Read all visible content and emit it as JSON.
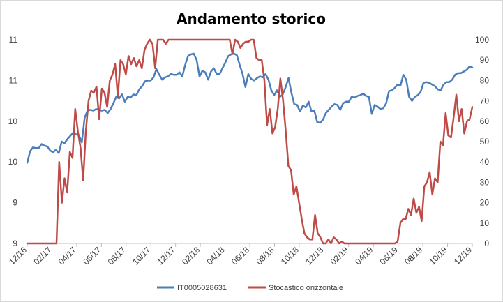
{
  "chart_data": {
    "type": "line",
    "title": "Andamento storico",
    "x_tick_labels": [
      "12/16",
      "02/17",
      "04/17",
      "06/17",
      "08/17",
      "10/17",
      "12/17",
      "02/18",
      "04/18",
      "06/18",
      "08/18",
      "10/18",
      "12/18",
      "02/19",
      "04/19",
      "06/19",
      "08/19",
      "10/19",
      "12/19"
    ],
    "y_left_tick_labels": [
      "9",
      "9",
      "10",
      "10",
      "11",
      "11"
    ],
    "y_right_tick_labels": [
      "0",
      "10",
      "20",
      "30",
      "40",
      "50",
      "60",
      "70",
      "80",
      "90",
      "100"
    ],
    "y_left_range": [
      9.0,
      11.5
    ],
    "y_right_range": [
      0,
      100
    ],
    "legend_position": "bottom",
    "grid": false,
    "series": [
      {
        "name": "IT0005028631",
        "axis": "left",
        "color": "#4a7ebb",
        "values": [
          9.99,
          10.13,
          10.18,
          10.17,
          10.17,
          10.22,
          10.2,
          10.19,
          10.14,
          10.12,
          10.15,
          10.11,
          10.25,
          10.23,
          10.28,
          10.32,
          10.36,
          10.34,
          10.33,
          10.24,
          10.54,
          10.63,
          10.64,
          10.63,
          10.65,
          10.64,
          10.63,
          10.64,
          10.6,
          10.65,
          10.72,
          10.8,
          10.78,
          10.83,
          10.74,
          10.8,
          10.79,
          10.83,
          10.82,
          10.89,
          10.93,
          10.99,
          11.0,
          11.0,
          11.04,
          11.14,
          11.07,
          11.01,
          11.04,
          11.05,
          11.08,
          11.07,
          11.07,
          11.1,
          11.05,
          11.19,
          11.3,
          11.32,
          11.33,
          11.25,
          11.05,
          11.12,
          11.1,
          11.01,
          11.11,
          11.15,
          11.08,
          11.08,
          11.15,
          11.22,
          11.3,
          11.32,
          11.33,
          11.31,
          11.19,
          11.08,
          10.92,
          11.08,
          11.02,
          11.0,
          11.03,
          11.05,
          11.04,
          11.08,
          11.01,
          10.88,
          10.82,
          10.88,
          10.8,
          10.83,
          10.92,
          11.03,
          10.85,
          10.71,
          10.7,
          10.62,
          10.69,
          10.67,
          10.74,
          10.62,
          10.63,
          10.49,
          10.48,
          10.52,
          10.6,
          10.64,
          10.68,
          10.71,
          10.7,
          10.64,
          10.72,
          10.74,
          10.74,
          10.8,
          10.79,
          10.81,
          10.82,
          10.84,
          10.81,
          10.8,
          10.59,
          10.7,
          10.68,
          10.65,
          10.66,
          10.72,
          10.87,
          10.88,
          10.91,
          10.95,
          10.94,
          11.07,
          11.01,
          10.8,
          10.75,
          10.8,
          10.82,
          10.86,
          10.97,
          10.98,
          10.97,
          10.95,
          10.93,
          10.89,
          10.88,
          10.95,
          10.98,
          10.98,
          11.01,
          11.07,
          11.09,
          11.09,
          11.11,
          11.13,
          11.17,
          11.16
        ]
      },
      {
        "name": "Stocastico orizzontale",
        "axis": "right",
        "color": "#be4b48",
        "values": [
          0,
          0,
          0,
          0,
          0,
          0,
          0,
          0,
          0,
          0,
          0,
          0,
          40,
          20,
          32,
          25,
          45,
          42,
          66,
          55,
          47,
          31,
          55,
          70,
          75,
          74,
          77,
          61,
          76,
          74,
          67,
          80,
          83,
          88,
          72,
          90,
          88,
          83,
          92,
          88,
          91,
          87,
          90,
          86,
          95,
          98,
          100,
          98,
          86,
          100,
          100,
          100,
          98,
          100,
          100,
          100,
          100,
          100,
          100,
          100,
          100,
          100,
          100,
          100,
          100,
          100,
          100,
          100,
          100,
          100,
          100,
          100,
          100,
          100,
          100,
          100,
          100,
          93,
          100,
          99,
          96,
          98,
          99,
          99,
          100,
          100,
          91,
          90,
          90,
          80,
          58,
          66,
          54,
          57,
          66,
          81,
          70,
          55,
          38,
          36,
          24,
          28,
          20,
          12,
          5,
          3,
          2,
          2,
          14,
          5,
          3,
          0,
          0,
          2,
          0,
          3,
          2,
          0,
          1,
          0,
          0,
          0,
          0,
          0,
          0,
          0,
          0,
          0,
          0,
          0,
          0,
          0,
          0,
          0,
          0,
          0,
          0,
          0,
          0,
          1,
          10,
          12,
          12,
          17,
          14,
          22,
          15,
          18,
          11,
          28,
          30,
          35,
          24,
          32,
          30,
          50,
          48,
          64,
          53,
          52,
          62,
          73,
          60,
          66,
          54,
          60,
          61,
          67
        ]
      }
    ]
  }
}
